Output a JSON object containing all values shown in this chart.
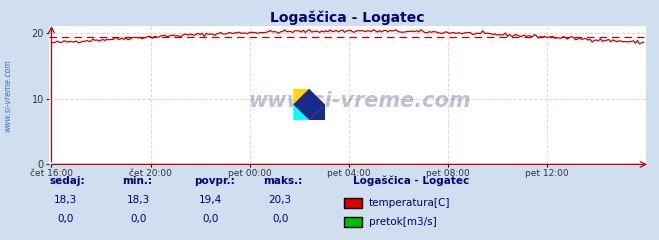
{
  "title": "Logaščica - Logatec",
  "title_color": "#000080",
  "bg_color": "#d0dff0",
  "plot_bg_color": "#ffffff",
  "ylim": [
    0,
    21
  ],
  "yticks": [
    0,
    10,
    20
  ],
  "xtick_labels": [
    "čet 16:00",
    "čet 20:00",
    "pet 00:00",
    "pet 04:00",
    "pet 08:00",
    "pet 12:00"
  ],
  "xtick_positions": [
    0,
    48,
    96,
    144,
    192,
    240
  ],
  "n_points": 288,
  "temp_color": "#cc0000",
  "pretok_color": "#00aa00",
  "dashed_line_value": 19.4,
  "watermark": "www.si-vreme.com",
  "watermark_color": "#1a3a7a",
  "sidebar_text_color": "#2060c0",
  "footer_header_color": "#000080",
  "footer_value_color": "#000080",
  "legend_title": "Logaščica - Logatec",
  "legend_title_color": "#000080",
  "legend_items": [
    {
      "label": "temperatura[C]",
      "color": "#dd0000"
    },
    {
      "label": "pretok[m3/s]",
      "color": "#00bb00"
    }
  ],
  "footer_headers": [
    "sedaj:",
    "min.:",
    "povpr.:",
    "maks.:"
  ],
  "footer_values_temp": [
    "18,3",
    "18,3",
    "19,4",
    "20,3"
  ],
  "footer_values_pretok": [
    "0,0",
    "0,0",
    "0,0",
    "0,0"
  ],
  "grid_v_color": "#ffcccc",
  "grid_h_color": "#ffcccc",
  "axis_color": "#cc0000"
}
